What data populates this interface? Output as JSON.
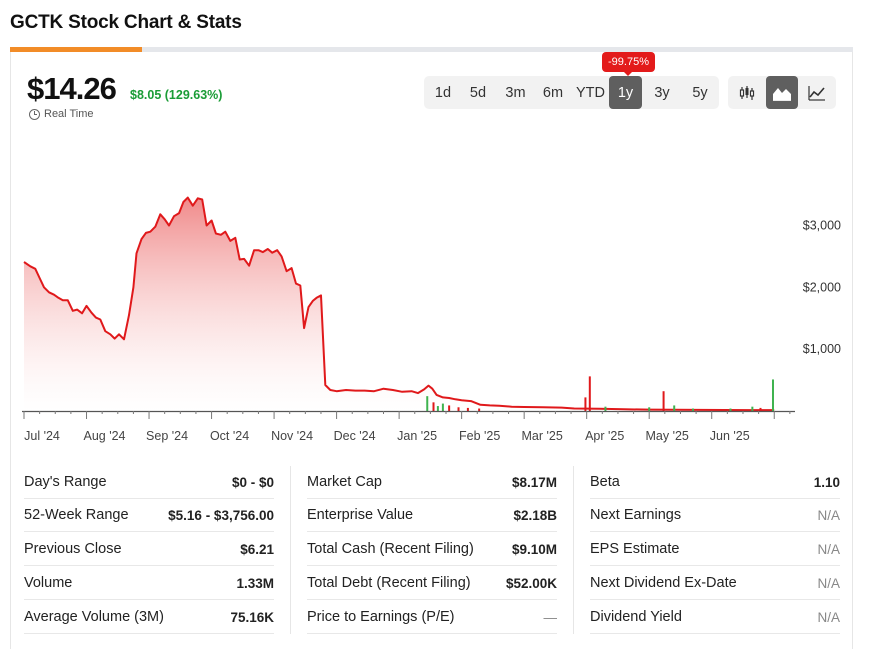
{
  "page": {
    "title": "GCTK Stock Chart & Stats"
  },
  "quote": {
    "price": "$14.26",
    "change": "$8.05 (129.63%)",
    "realtime_label": "Real Time",
    "change_color": "#1a9c36"
  },
  "range": {
    "badge": "-99.75%",
    "options": [
      "1d",
      "5d",
      "3m",
      "6m",
      "YTD",
      "1y",
      "3y",
      "5y"
    ],
    "selected": "1y"
  },
  "chart_types": {
    "options": [
      "candlestick-chart-icon",
      "area-chart-icon",
      "line-chart-icon"
    ],
    "selected": "area-chart-icon"
  },
  "chart_data": {
    "type": "area",
    "title": "",
    "xlabel": "",
    "ylabel": "",
    "x_tick_labels": [
      "Jul '24",
      "Aug '24",
      "Sep '24",
      "Oct '24",
      "Nov '24",
      "Dec '24",
      "Jan '25",
      "Feb '25",
      "Mar '25",
      "Apr '25",
      "May '25",
      "Jun '25"
    ],
    "y_tick_labels": [
      "$1,000",
      "$2,000",
      "$3,000"
    ],
    "y_ticks": [
      1000,
      2000,
      3000
    ],
    "ylim": [
      0,
      3800
    ],
    "x_range": [
      0,
      12.3
    ],
    "line_color": "#e0191b",
    "fill_top_color": "#f08a8a",
    "series": [
      {
        "values": [
          [
            0.0,
            2410
          ],
          [
            0.1,
            2340
          ],
          [
            0.18,
            2300
          ],
          [
            0.25,
            2150
          ],
          [
            0.32,
            2000
          ],
          [
            0.4,
            1920
          ],
          [
            0.48,
            1880
          ],
          [
            0.55,
            1830
          ],
          [
            0.62,
            1790
          ],
          [
            0.7,
            1790
          ],
          [
            0.78,
            1620
          ],
          [
            0.85,
            1640
          ],
          [
            0.93,
            1580
          ],
          [
            1.0,
            1700
          ],
          [
            1.08,
            1590
          ],
          [
            1.15,
            1510
          ],
          [
            1.22,
            1480
          ],
          [
            1.3,
            1290
          ],
          [
            1.38,
            1240
          ],
          [
            1.45,
            1170
          ],
          [
            1.52,
            1240
          ],
          [
            1.6,
            1160
          ],
          [
            1.68,
            1550
          ],
          [
            1.75,
            2000
          ],
          [
            1.8,
            2550
          ],
          [
            1.88,
            2780
          ],
          [
            1.95,
            2880
          ],
          [
            2.02,
            2900
          ],
          [
            2.1,
            2980
          ],
          [
            2.18,
            3180
          ],
          [
            2.25,
            3100
          ],
          [
            2.32,
            3000
          ],
          [
            2.4,
            3150
          ],
          [
            2.48,
            3200
          ],
          [
            2.55,
            3380
          ],
          [
            2.62,
            3450
          ],
          [
            2.7,
            3320
          ],
          [
            2.78,
            3440
          ],
          [
            2.85,
            3420
          ],
          [
            2.92,
            3000
          ],
          [
            3.0,
            3080
          ],
          [
            3.07,
            2870
          ],
          [
            3.15,
            2850
          ],
          [
            3.22,
            2900
          ],
          [
            3.3,
            2750
          ],
          [
            3.38,
            2800
          ],
          [
            3.45,
            2450
          ],
          [
            3.52,
            2460
          ],
          [
            3.6,
            2350
          ],
          [
            3.68,
            2600
          ],
          [
            3.75,
            2600
          ],
          [
            3.82,
            2570
          ],
          [
            3.9,
            2620
          ],
          [
            3.97,
            2560
          ],
          [
            4.05,
            2600
          ],
          [
            4.12,
            2500
          ],
          [
            4.2,
            2260
          ],
          [
            4.28,
            2310
          ],
          [
            4.35,
            2060
          ],
          [
            4.42,
            2030
          ],
          [
            4.48,
            1340
          ],
          [
            4.55,
            1680
          ],
          [
            4.62,
            1780
          ],
          [
            4.68,
            1830
          ],
          [
            4.75,
            1870
          ],
          [
            4.82,
            420
          ],
          [
            4.9,
            340
          ],
          [
            5.0,
            320
          ],
          [
            5.15,
            340
          ],
          [
            5.3,
            330
          ],
          [
            5.45,
            330
          ],
          [
            5.6,
            320
          ],
          [
            5.75,
            360
          ],
          [
            5.9,
            340
          ],
          [
            6.05,
            310
          ],
          [
            6.2,
            320
          ],
          [
            6.3,
            290
          ],
          [
            6.4,
            350
          ],
          [
            6.47,
            410
          ],
          [
            6.53,
            360
          ],
          [
            6.6,
            260
          ],
          [
            6.7,
            220
          ],
          [
            6.8,
            210
          ],
          [
            6.9,
            190
          ],
          [
            7.0,
            175
          ],
          [
            7.15,
            160
          ],
          [
            7.3,
            100
          ],
          [
            7.45,
            90
          ],
          [
            7.6,
            85
          ],
          [
            7.8,
            70
          ],
          [
            8.0,
            65
          ],
          [
            8.3,
            60
          ],
          [
            8.6,
            55
          ],
          [
            8.8,
            40
          ],
          [
            9.2,
            35
          ],
          [
            9.6,
            28
          ],
          [
            10.0,
            22
          ],
          [
            10.4,
            20
          ],
          [
            10.8,
            18
          ],
          [
            11.2,
            16
          ],
          [
            11.6,
            15
          ],
          [
            12.0,
            14.26
          ]
        ]
      }
    ],
    "volume_bars": [
      [
        6.45,
        240,
        "green"
      ],
      [
        6.55,
        140,
        "red"
      ],
      [
        6.62,
        80,
        "green"
      ],
      [
        6.7,
        120,
        "green"
      ],
      [
        6.8,
        90,
        "red"
      ],
      [
        6.95,
        60,
        "red"
      ],
      [
        7.1,
        50,
        "red"
      ],
      [
        7.28,
        40,
        "red"
      ],
      [
        8.98,
        220,
        "red"
      ],
      [
        9.05,
        560,
        "red"
      ],
      [
        9.3,
        70,
        "green"
      ],
      [
        10.0,
        60,
        "green"
      ],
      [
        10.23,
        320,
        "red"
      ],
      [
        10.4,
        90,
        "green"
      ],
      [
        10.7,
        40,
        "green"
      ],
      [
        11.3,
        40,
        "green"
      ],
      [
        11.65,
        70,
        "green"
      ],
      [
        11.78,
        50,
        "red"
      ],
      [
        11.98,
        510,
        "green"
      ]
    ],
    "grid": false,
    "legend": "none"
  },
  "stats": {
    "col1": [
      {
        "label": "Day's Range",
        "value": "$0 - $0"
      },
      {
        "label": "52-Week Range",
        "value": "$5.16 - $3,756.00"
      },
      {
        "label": "Previous Close",
        "value": "$6.21"
      },
      {
        "label": "Volume",
        "value": "1.33M"
      },
      {
        "label": "Average Volume (3M)",
        "value": "75.16K"
      }
    ],
    "col2": [
      {
        "label": "Market Cap",
        "value": "$8.17M"
      },
      {
        "label": "Enterprise Value",
        "value": "$2.18B"
      },
      {
        "label": "Total Cash (Recent Filing)",
        "value": "$9.10M"
      },
      {
        "label": "Total Debt (Recent Filing)",
        "value": "$52.00K"
      },
      {
        "label": "Price to Earnings (P/E)",
        "value": "—"
      }
    ],
    "col3": [
      {
        "label": "Beta",
        "value": "1.10"
      },
      {
        "label": "Next Earnings",
        "value": "N/A"
      },
      {
        "label": "EPS Estimate",
        "value": "N/A"
      },
      {
        "label": "Next Dividend Ex-Date",
        "value": "N/A"
      },
      {
        "label": "Dividend Yield",
        "value": "N/A"
      }
    ]
  }
}
